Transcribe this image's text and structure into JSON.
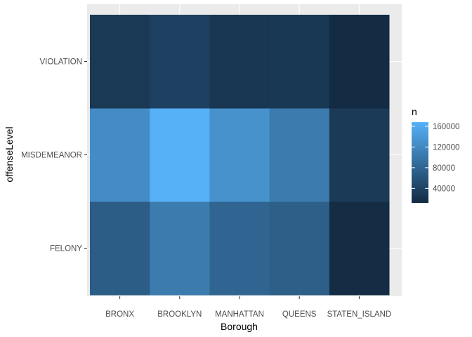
{
  "chart_data": {
    "type": "heatmap",
    "xlabel": "Borough",
    "ylabel": "offenseLevel",
    "x_categories": [
      "BRONX",
      "BROOKLYN",
      "MANHATTAN",
      "QUEENS",
      "STATEN_ISLAND"
    ],
    "y_categories": [
      "FELONY",
      "MISDEMEANOR",
      "VIOLATION"
    ],
    "values": {
      "FELONY": [
        70000,
        105000,
        80000,
        72000,
        14000
      ],
      "MISDEMEANOR": [
        125000,
        168000,
        132000,
        105000,
        30000
      ],
      "VIOLATION": [
        28000,
        38000,
        25000,
        27000,
        12000
      ]
    },
    "legend": {
      "title": "n",
      "position": "right",
      "ticks": [
        40000,
        80000,
        120000,
        160000
      ],
      "tick_labels": [
        "40000",
        "80000",
        "120000",
        "160000"
      ],
      "range": [
        12000,
        168000
      ],
      "low_color": "#132B43",
      "high_color": "#56B1F7"
    },
    "panel_background": "#EBEBEB",
    "grid": true
  }
}
